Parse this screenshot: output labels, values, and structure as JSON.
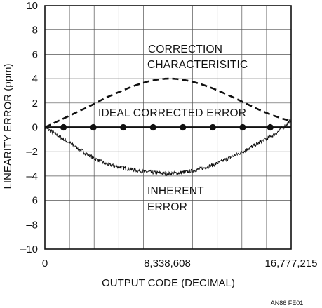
{
  "chart_data": {
    "type": "line",
    "xlabel": "OUTPUT CODE (DECIMAL)",
    "ylabel": "LINEARITY ERROR (ppm)",
    "xlim": [
      0,
      16777215
    ],
    "ylim": [
      -10,
      10
    ],
    "x_ticks": [
      0,
      8338608,
      16777215
    ],
    "x_tick_labels": [
      "0",
      "8,338,608",
      "16,777,215"
    ],
    "y_ticks": [
      10,
      8,
      6,
      4,
      2,
      0,
      -2,
      -4,
      -6,
      -8,
      -10
    ],
    "y_tick_labels": [
      "10",
      "8",
      "6",
      "4",
      "2",
      "0",
      "–2",
      "–4",
      "–6",
      "–8",
      "–10"
    ],
    "grid": true,
    "series": [
      {
        "name": "CORRECTION CHARACTERISITIC",
        "style": "dashed",
        "x": [
          0,
          1048576,
          2097152,
          3145728,
          4194304,
          5242880,
          6291456,
          7340032,
          8388608,
          9437184,
          10485760,
          11534336,
          12582912,
          13631488,
          14680064,
          15728640,
          16777215
        ],
        "y": [
          0,
          0.6,
          1.2,
          1.8,
          2.45,
          3.0,
          3.5,
          3.85,
          4.0,
          3.9,
          3.6,
          3.15,
          2.6,
          2.0,
          1.4,
          0.9,
          0.5
        ]
      },
      {
        "name": "IDEAL CORRECTED ERROR",
        "style": "solid-markers",
        "x": [
          0,
          1271000,
          3306000,
          5339000,
          7372000,
          9405000,
          11440000,
          13474000,
          15356000,
          16777215
        ],
        "y": [
          0,
          0,
          0,
          0,
          0,
          0,
          0,
          0,
          0,
          0
        ]
      },
      {
        "name": "INHERENT ERROR",
        "style": "noisy",
        "x": [
          0,
          1048576,
          2097152,
          3145728,
          4194304,
          5242880,
          6291456,
          7340032,
          8388608,
          9437184,
          10485760,
          11534336,
          12582912,
          13631488,
          14680064,
          15728640,
          16777215
        ],
        "y": [
          0,
          -0.8,
          -1.6,
          -2.4,
          -3.0,
          -3.3,
          -3.55,
          -3.7,
          -3.8,
          -3.7,
          -3.45,
          -3.05,
          -2.5,
          -1.9,
          -1.2,
          -0.5,
          0.6
        ]
      }
    ],
    "annotations": [
      {
        "lines": [
          "CORRECTION",
          "CHARACTERISITIC"
        ]
      },
      {
        "lines": [
          "IDEAL CORRECTED ERROR"
        ]
      },
      {
        "lines": [
          "INHERENT",
          "ERROR"
        ]
      }
    ]
  },
  "figure_code": "AN86 FE01"
}
